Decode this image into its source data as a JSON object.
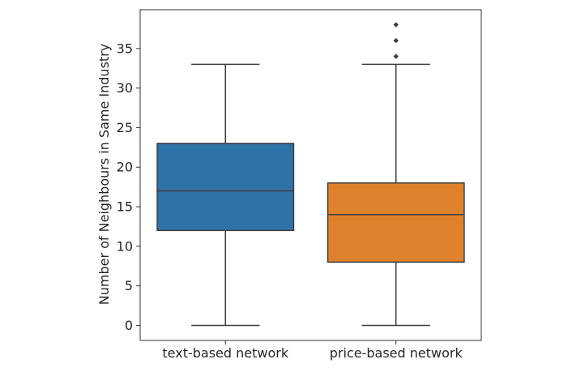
{
  "chart_data": {
    "type": "box",
    "ylabel": "Number of Neighbours in Same Industry",
    "xlabel": "",
    "ylim": [
      -1.9,
      39.9
    ],
    "yticks": [
      0,
      5,
      10,
      15,
      20,
      25,
      30,
      35
    ],
    "grid": false,
    "series": [
      {
        "category": "text-based network",
        "color": "#2e73a8",
        "whisker_low": 0,
        "q1": 12,
        "median": 17,
        "q3": 23,
        "whisker_high": 33,
        "outliers": []
      },
      {
        "category": "price-based network",
        "color": "#e0822b",
        "whisker_low": 0,
        "q1": 8,
        "median": 14,
        "q3": 18,
        "whisker_high": 33,
        "outliers": [
          34,
          36,
          38
        ]
      }
    ]
  }
}
